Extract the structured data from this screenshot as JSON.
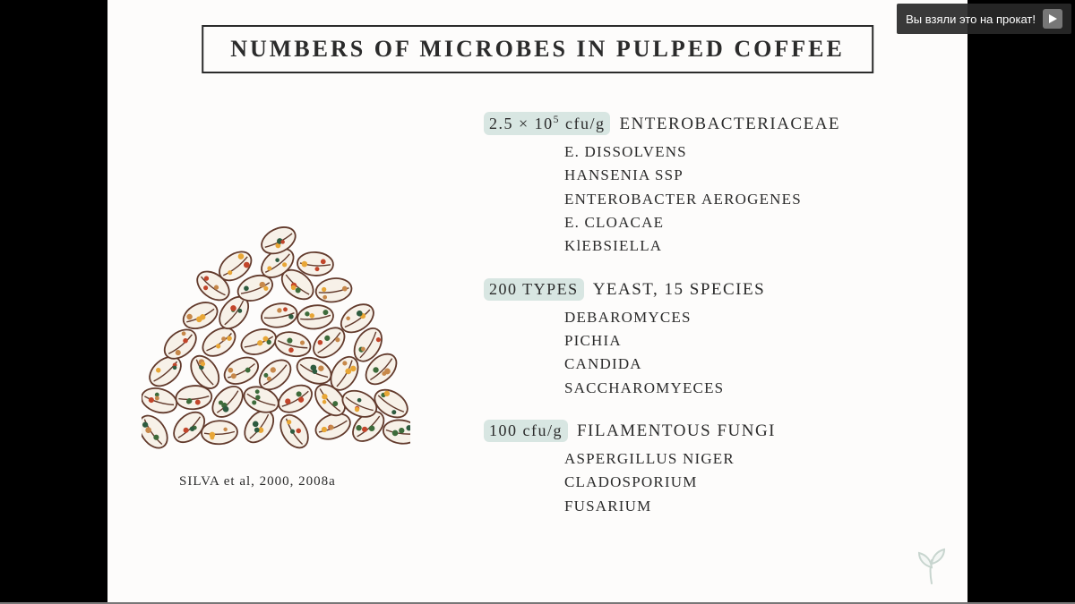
{
  "title": "NUMBERS OF MICROBES IN PULPED COFFEE",
  "citation": "SILVA et al, 2000, 2008a",
  "banner": {
    "text": "Вы взяли это на прокат!"
  },
  "groups": [
    {
      "count_html": "2.5 × 10<sup>5</sup> cfu/g",
      "heading": "ENTEROBACTERIACEAE",
      "items": [
        "E. DISSOLVENS",
        "HANSENIA SSP",
        "ENTEROBACTER AEROGENES",
        "E. CLOACAE",
        "KlEBSIELLA"
      ]
    },
    {
      "count_html": "200 TYPES",
      "heading": "YEAST, 15 SPECIES",
      "items": [
        "DEBAROMYCES",
        "PICHIA",
        "CANDIDA",
        "SACCHAROMYECES"
      ]
    },
    {
      "count_html": "100 cfu/g",
      "heading": "FILAMENTOUS FUNGI",
      "items": [
        "ASPERGILLUS NIGER",
        "CLADOSPORIUM",
        "FUSARIUM"
      ]
    }
  ],
  "colors": {
    "background": "#000000",
    "slide": "#fdfcfb",
    "text": "#2b2b2b",
    "highlight": "#d8e6e2",
    "bean_outline": "#623a2c",
    "bean_fill": "#f7f1e8",
    "dots": [
      "#c2452a",
      "#e8a636",
      "#3d6b3a",
      "#2d5b3f",
      "#c7884a"
    ]
  },
  "illustration": {
    "type": "pile-of-coffee-beans",
    "bean_count": 42,
    "dot_per_bean": 3
  }
}
